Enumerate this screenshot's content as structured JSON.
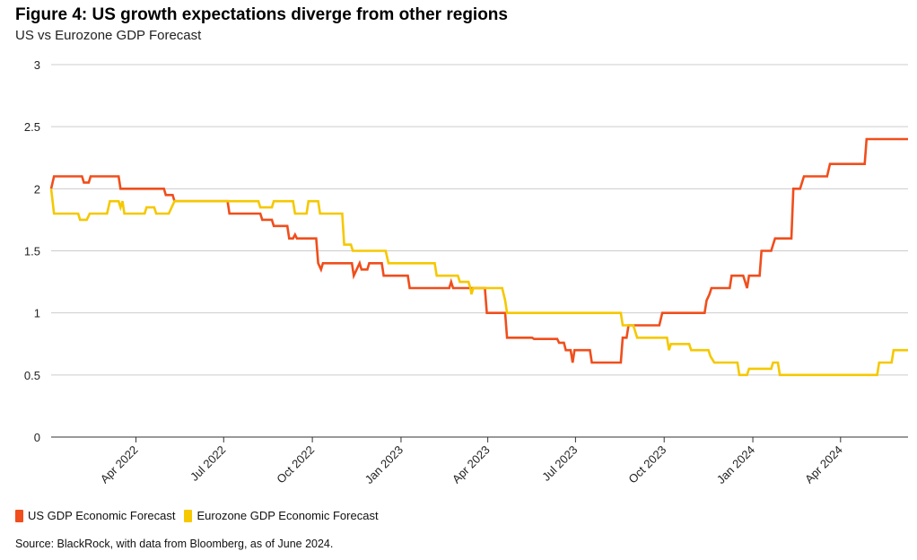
{
  "title": "Figure 4: US growth expectations diverge from other regions",
  "subtitle": "US vs Eurozone GDP Forecast",
  "source": "Source: BlackRock, with data from Bloomberg, as of June 2024.",
  "colors": {
    "us": "#f04e1c",
    "eurozone": "#f5c800",
    "grid": "#cccccc",
    "axis": "#333333"
  },
  "chart_data": {
    "type": "line",
    "title": "Figure 4: US growth expectations diverge from other regions",
    "subtitle": "US vs Eurozone GDP Forecast",
    "xlabel": "",
    "ylabel": "",
    "ylim": [
      0,
      3
    ],
    "xlim": [
      "2022-01-03",
      "2024-06-10"
    ],
    "yticks": [
      "0",
      "0.5",
      "1",
      "1.5",
      "2",
      "2.5",
      "3"
    ],
    "xticks": [
      {
        "label": "Apr 2022",
        "date": "2022-04-01"
      },
      {
        "label": "Jul 2022",
        "date": "2022-07-01"
      },
      {
        "label": "Oct 2022",
        "date": "2022-10-01"
      },
      {
        "label": "Jan 2023",
        "date": "2023-01-01"
      },
      {
        "label": "Apr 2023",
        "date": "2023-04-01"
      },
      {
        "label": "Jul 2023",
        "date": "2023-07-01"
      },
      {
        "label": "Oct 2023",
        "date": "2023-10-01"
      },
      {
        "label": "Jan 2024",
        "date": "2024-01-01"
      },
      {
        "label": "Apr 2024",
        "date": "2024-04-01"
      }
    ],
    "grid": true,
    "legend_position": "bottom-left",
    "series": [
      {
        "name": "US GDP Economic Forecast",
        "color": "#f04e1c",
        "points": [
          [
            "2022-01-03",
            2.0
          ],
          [
            "2022-01-06",
            2.1
          ],
          [
            "2022-02-04",
            2.1
          ],
          [
            "2022-02-06",
            2.05
          ],
          [
            "2022-02-11",
            2.05
          ],
          [
            "2022-02-13",
            2.1
          ],
          [
            "2022-03-14",
            2.1
          ],
          [
            "2022-03-16",
            2.0
          ],
          [
            "2022-04-30",
            2.0
          ],
          [
            "2022-05-02",
            1.95
          ],
          [
            "2022-05-09",
            1.95
          ],
          [
            "2022-05-11",
            1.9
          ],
          [
            "2022-07-05",
            1.9
          ],
          [
            "2022-07-07",
            1.8
          ],
          [
            "2022-08-08",
            1.8
          ],
          [
            "2022-08-10",
            1.75
          ],
          [
            "2022-08-20",
            1.75
          ],
          [
            "2022-08-22",
            1.7
          ],
          [
            "2022-09-05",
            1.7
          ],
          [
            "2022-09-07",
            1.6
          ],
          [
            "2022-09-11",
            1.6
          ],
          [
            "2022-09-13",
            1.63
          ],
          [
            "2022-09-15",
            1.6
          ],
          [
            "2022-10-05",
            1.6
          ],
          [
            "2022-10-07",
            1.4
          ],
          [
            "2022-10-10",
            1.35
          ],
          [
            "2022-10-12",
            1.4
          ],
          [
            "2022-11-11",
            1.4
          ],
          [
            "2022-11-13",
            1.3
          ],
          [
            "2022-11-16",
            1.35
          ],
          [
            "2022-11-19",
            1.4
          ],
          [
            "2022-11-21",
            1.35
          ],
          [
            "2022-11-27",
            1.35
          ],
          [
            "2022-11-29",
            1.4
          ],
          [
            "2022-12-12",
            1.4
          ],
          [
            "2022-12-14",
            1.3
          ],
          [
            "2023-01-08",
            1.3
          ],
          [
            "2023-01-10",
            1.2
          ],
          [
            "2023-02-20",
            1.2
          ],
          [
            "2023-02-22",
            1.25
          ],
          [
            "2023-02-24",
            1.2
          ],
          [
            "2023-03-29",
            1.2
          ],
          [
            "2023-03-31",
            1.0
          ],
          [
            "2023-04-19",
            1.0
          ],
          [
            "2023-04-21",
            0.8
          ],
          [
            "2023-05-17",
            0.8
          ],
          [
            "2023-05-19",
            0.79
          ],
          [
            "2023-06-12",
            0.79
          ],
          [
            "2023-06-14",
            0.76
          ],
          [
            "2023-06-19",
            0.76
          ],
          [
            "2023-06-21",
            0.7
          ],
          [
            "2023-06-26",
            0.7
          ],
          [
            "2023-06-28",
            0.6
          ],
          [
            "2023-06-30",
            0.7
          ],
          [
            "2023-07-16",
            0.7
          ],
          [
            "2023-07-18",
            0.6
          ],
          [
            "2023-08-17",
            0.6
          ],
          [
            "2023-08-19",
            0.8
          ],
          [
            "2023-08-23",
            0.8
          ],
          [
            "2023-08-25",
            0.9
          ],
          [
            "2023-09-26",
            0.9
          ],
          [
            "2023-09-29",
            1.0
          ],
          [
            "2023-11-12",
            1.0
          ],
          [
            "2023-11-14",
            1.1
          ],
          [
            "2023-11-17",
            1.15
          ],
          [
            "2023-11-19",
            1.2
          ],
          [
            "2023-12-08",
            1.2
          ],
          [
            "2023-12-10",
            1.3
          ],
          [
            "2023-12-22",
            1.3
          ],
          [
            "2023-12-24",
            1.25
          ],
          [
            "2023-12-26",
            1.2
          ],
          [
            "2023-12-28",
            1.3
          ],
          [
            "2024-01-08",
            1.3
          ],
          [
            "2024-01-10",
            1.5
          ],
          [
            "2024-01-20",
            1.5
          ],
          [
            "2024-01-22",
            1.55
          ],
          [
            "2024-01-24",
            1.6
          ],
          [
            "2024-02-10",
            1.6
          ],
          [
            "2024-02-12",
            2.0
          ],
          [
            "2024-02-19",
            2.0
          ],
          [
            "2024-02-23",
            2.1
          ],
          [
            "2024-03-18",
            2.1
          ],
          [
            "2024-03-21",
            2.2
          ],
          [
            "2024-04-26",
            2.2
          ],
          [
            "2024-04-28",
            2.4
          ],
          [
            "2024-06-10",
            2.4
          ]
        ]
      },
      {
        "name": "Eurozone GDP Economic Forecast",
        "color": "#f5c800",
        "points": [
          [
            "2022-01-03",
            2.0
          ],
          [
            "2022-01-06",
            1.8
          ],
          [
            "2022-01-31",
            1.8
          ],
          [
            "2022-02-02",
            1.75
          ],
          [
            "2022-02-09",
            1.75
          ],
          [
            "2022-02-12",
            1.8
          ],
          [
            "2022-03-02",
            1.8
          ],
          [
            "2022-03-05",
            1.9
          ],
          [
            "2022-03-14",
            1.9
          ],
          [
            "2022-03-16",
            1.85
          ],
          [
            "2022-03-18",
            1.9
          ],
          [
            "2022-03-20",
            1.8
          ],
          [
            "2022-04-10",
            1.8
          ],
          [
            "2022-04-12",
            1.85
          ],
          [
            "2022-04-20",
            1.85
          ],
          [
            "2022-04-22",
            1.8
          ],
          [
            "2022-05-05",
            1.8
          ],
          [
            "2022-05-11",
            1.9
          ],
          [
            "2022-08-06",
            1.9
          ],
          [
            "2022-08-08",
            1.85
          ],
          [
            "2022-08-20",
            1.85
          ],
          [
            "2022-08-22",
            1.9
          ],
          [
            "2022-09-11",
            1.9
          ],
          [
            "2022-09-13",
            1.8
          ],
          [
            "2022-09-25",
            1.8
          ],
          [
            "2022-09-27",
            1.9
          ],
          [
            "2022-10-07",
            1.9
          ],
          [
            "2022-10-09",
            1.8
          ],
          [
            "2022-11-01",
            1.8
          ],
          [
            "2022-11-03",
            1.55
          ],
          [
            "2022-11-10",
            1.55
          ],
          [
            "2022-11-12",
            1.5
          ],
          [
            "2022-12-16",
            1.5
          ],
          [
            "2022-12-19",
            1.4
          ],
          [
            "2023-02-05",
            1.4
          ],
          [
            "2023-02-07",
            1.3
          ],
          [
            "2023-03-01",
            1.3
          ],
          [
            "2023-03-03",
            1.25
          ],
          [
            "2023-03-12",
            1.25
          ],
          [
            "2023-03-14",
            1.2
          ],
          [
            "2023-03-15",
            1.15
          ],
          [
            "2023-03-17",
            1.2
          ],
          [
            "2023-04-16",
            1.2
          ],
          [
            "2023-04-19",
            1.1
          ],
          [
            "2023-04-21",
            1.0
          ],
          [
            "2023-08-17",
            1.0
          ],
          [
            "2023-08-19",
            0.9
          ],
          [
            "2023-08-30",
            0.9
          ],
          [
            "2023-09-01",
            0.85
          ],
          [
            "2023-09-03",
            0.8
          ],
          [
            "2023-10-04",
            0.8
          ],
          [
            "2023-10-06",
            0.7
          ],
          [
            "2023-10-08",
            0.75
          ],
          [
            "2023-10-27",
            0.75
          ],
          [
            "2023-10-29",
            0.7
          ],
          [
            "2023-11-16",
            0.7
          ],
          [
            "2023-11-18",
            0.65
          ],
          [
            "2023-11-22",
            0.6
          ],
          [
            "2023-12-16",
            0.6
          ],
          [
            "2023-12-18",
            0.5
          ],
          [
            "2023-12-26",
            0.5
          ],
          [
            "2023-12-28",
            0.55
          ],
          [
            "2024-01-20",
            0.55
          ],
          [
            "2024-01-22",
            0.6
          ],
          [
            "2024-01-27",
            0.6
          ],
          [
            "2024-01-29",
            0.5
          ],
          [
            "2024-05-09",
            0.5
          ],
          [
            "2024-05-11",
            0.6
          ],
          [
            "2024-05-24",
            0.6
          ],
          [
            "2024-05-26",
            0.7
          ],
          [
            "2024-06-10",
            0.7
          ]
        ]
      }
    ]
  }
}
